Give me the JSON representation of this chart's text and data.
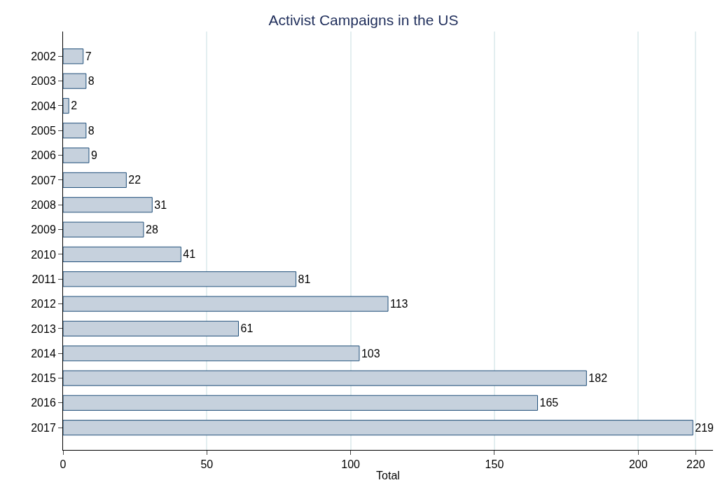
{
  "chart_data": {
    "type": "bar",
    "orientation": "horizontal",
    "title": "Activist Campaigns in the US",
    "xlabel": "Total",
    "categories": [
      "2002",
      "2003",
      "2004",
      "2005",
      "2006",
      "2007",
      "2008",
      "2009",
      "2010",
      "2011",
      "2012",
      "2013",
      "2014",
      "2015",
      "2016",
      "2017"
    ],
    "values": [
      7,
      8,
      2,
      8,
      9,
      22,
      31,
      28,
      41,
      81,
      113,
      61,
      103,
      182,
      165,
      219
    ],
    "color": "#c6d1dd",
    "xlim": [
      0,
      226
    ],
    "xticks": [
      0,
      50,
      100,
      150,
      200,
      220
    ],
    "grid": "x",
    "data_labels": true
  }
}
